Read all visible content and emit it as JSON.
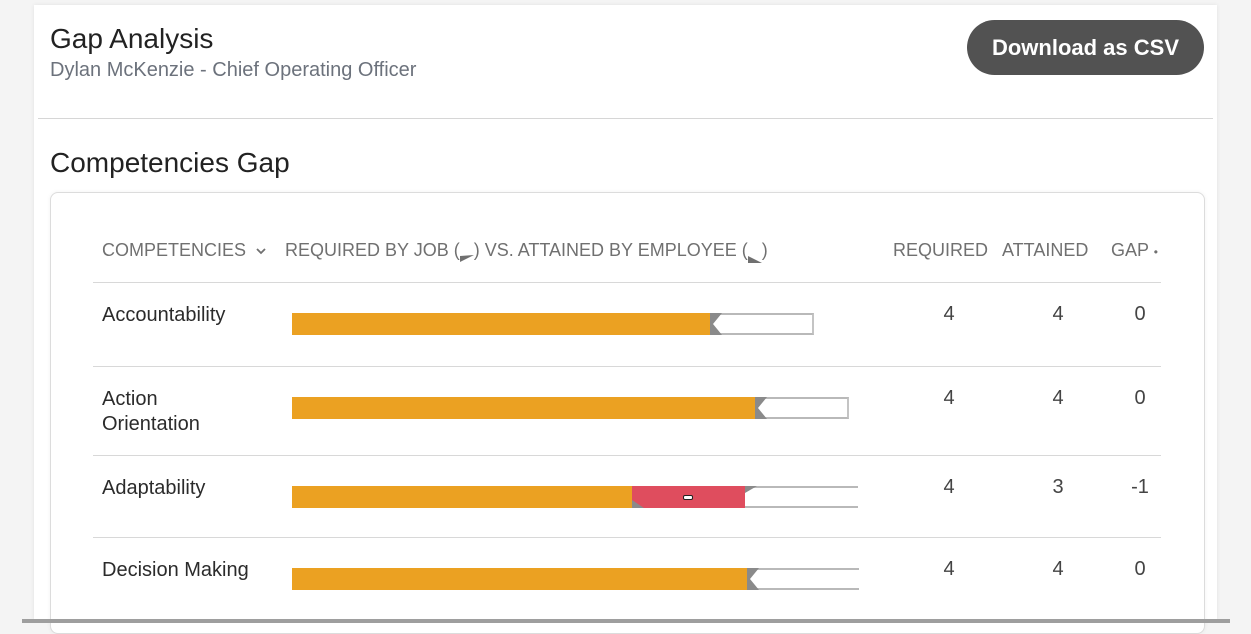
{
  "header": {
    "title": "Gap Analysis",
    "subtitle": "Dylan McKenzie - Chief Operating Officer",
    "download_button": "Download as CSV"
  },
  "section": {
    "title": "Competencies Gap"
  },
  "table": {
    "columns": {
      "competencies": "COMPETENCIES",
      "comparison_prefix": "REQUIRED BY JOB (",
      "comparison_middle": ") VS. ATTAINED BY EMPLOYEE (",
      "comparison_suffix": ")",
      "required": "REQUIRED",
      "attained": "ATTAINED",
      "gap": "GAP"
    },
    "scale_max": 4,
    "rows": [
      {
        "name": "Accountability",
        "required": "4",
        "attained": "4",
        "gap": "0"
      },
      {
        "name": "Action Orientation",
        "required": "4",
        "attained": "4",
        "gap": "0"
      },
      {
        "name": "Adaptability",
        "required": "4",
        "attained": "3",
        "gap": "-1"
      },
      {
        "name": "Decision Making",
        "required": "4",
        "attained": "4",
        "gap": "0"
      }
    ]
  },
  "colors": {
    "attained_fill": "#eba122",
    "gap_fill": "#df4d5e",
    "button_bg": "#525252",
    "marker": "#8a8a8a"
  }
}
